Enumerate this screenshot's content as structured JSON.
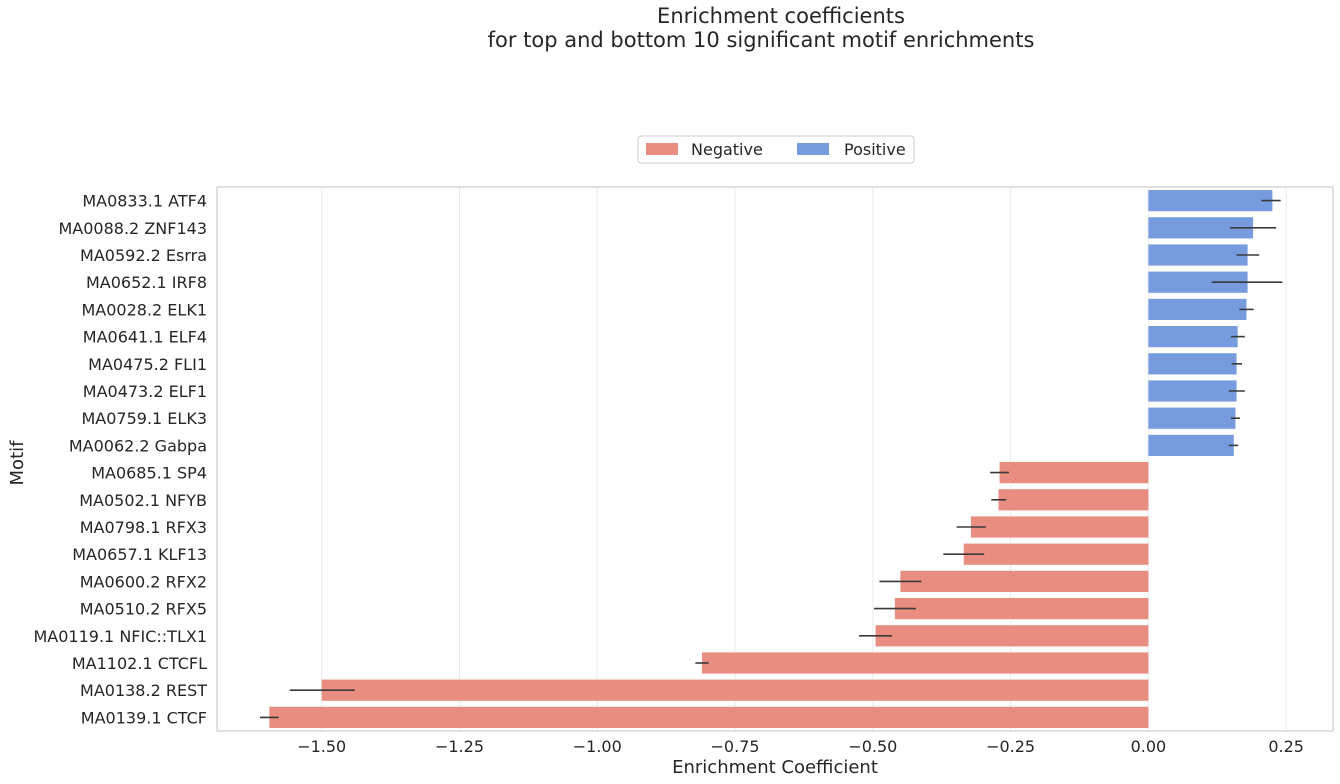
{
  "chart_data": {
    "type": "bar",
    "orientation": "horizontal",
    "title_lines": [
      "Enrichment coefficients",
      "for top and bottom 10 significant motif enrichments"
    ],
    "xlabel": "Enrichment Coefficient",
    "ylabel": "Motif",
    "xlim": [
      -1.69,
      0.335
    ],
    "xticks": [
      -1.5,
      -1.25,
      -1.0,
      -0.75,
      -0.5,
      -0.25,
      0.0,
      0.25
    ],
    "xtick_labels": [
      "−1.50",
      "−1.25",
      "−1.00",
      "−0.75",
      "−0.50",
      "−0.25",
      "0.00",
      "0.25"
    ],
    "grid": "vertical",
    "legend": {
      "placement": "top-center",
      "entries": [
        {
          "name": "Negative",
          "color": "#e98d80"
        },
        {
          "name": "Positive",
          "color": "#769cdf"
        }
      ]
    },
    "bars": [
      {
        "label": "MA0833.1 ATF4",
        "value": 0.225,
        "err_low": 0.205,
        "err_high": 0.24,
        "sign": "Positive"
      },
      {
        "label": "MA0088.2 ZNF143",
        "value": 0.19,
        "err_low": 0.148,
        "err_high": 0.232,
        "sign": "Positive"
      },
      {
        "label": "MA0592.2 Esrra",
        "value": 0.18,
        "err_low": 0.16,
        "err_high": 0.201,
        "sign": "Positive"
      },
      {
        "label": "MA0652.1 IRF8",
        "value": 0.18,
        "err_low": 0.115,
        "err_high": 0.243,
        "sign": "Positive"
      },
      {
        "label": "MA0028.2 ELK1",
        "value": 0.178,
        "err_low": 0.165,
        "err_high": 0.191,
        "sign": "Positive"
      },
      {
        "label": "MA0641.1 ELF4",
        "value": 0.162,
        "err_low": 0.15,
        "err_high": 0.175,
        "sign": "Positive"
      },
      {
        "label": "MA0475.2 FLI1",
        "value": 0.16,
        "err_low": 0.151,
        "err_high": 0.17,
        "sign": "Positive"
      },
      {
        "label": "MA0473.2 ELF1",
        "value": 0.16,
        "err_low": 0.146,
        "err_high": 0.175,
        "sign": "Positive"
      },
      {
        "label": "MA0759.1 ELK3",
        "value": 0.158,
        "err_low": 0.15,
        "err_high": 0.166,
        "sign": "Positive"
      },
      {
        "label": "MA0062.2 Gabpa",
        "value": 0.155,
        "err_low": 0.146,
        "err_high": 0.163,
        "sign": "Positive"
      },
      {
        "label": "MA0685.1 SP4",
        "value": -0.27,
        "err_low": -0.287,
        "err_high": -0.253,
        "sign": "Negative"
      },
      {
        "label": "MA0502.1 NFYB",
        "value": -0.272,
        "err_low": -0.285,
        "err_high": -0.258,
        "sign": "Negative"
      },
      {
        "label": "MA0798.1 RFX3",
        "value": -0.322,
        "err_low": -0.348,
        "err_high": -0.295,
        "sign": "Negative"
      },
      {
        "label": "MA0657.1 KLF13",
        "value": -0.335,
        "err_low": -0.372,
        "err_high": -0.298,
        "sign": "Negative"
      },
      {
        "label": "MA0600.2 RFX2",
        "value": -0.45,
        "err_low": -0.488,
        "err_high": -0.412,
        "sign": "Negative"
      },
      {
        "label": "MA0510.2 RFX5",
        "value": -0.46,
        "err_low": -0.498,
        "err_high": -0.422,
        "sign": "Negative"
      },
      {
        "label": "MA0119.1 NFIC::TLX1",
        "value": -0.495,
        "err_low": -0.525,
        "err_high": -0.465,
        "sign": "Negative"
      },
      {
        "label": "MA1102.1 CTCFL",
        "value": -0.81,
        "err_low": -0.822,
        "err_high": -0.798,
        "sign": "Negative"
      },
      {
        "label": "MA0138.2 REST",
        "value": -1.5,
        "err_low": -1.558,
        "err_high": -1.44,
        "sign": "Negative"
      },
      {
        "label": "MA0139.1 CTCF",
        "value": -1.595,
        "err_low": -1.612,
        "err_high": -1.578,
        "sign": "Negative"
      }
    ]
  }
}
